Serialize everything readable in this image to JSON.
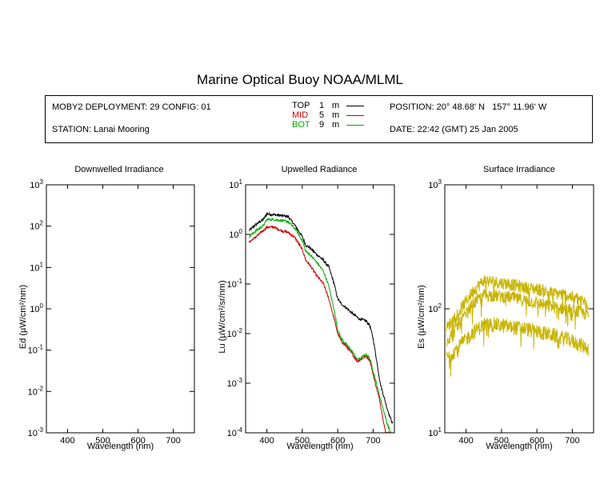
{
  "title": "Marine Optical Buoy NOAA/MLML",
  "info": {
    "deployment": "MOBY2 DEPLOYMENT: 29 CONFIG: 01",
    "station": "STATION: Lanai Mooring",
    "position": "POSITION: 20° 48.68' N   157° 11.96' W",
    "date": "DATE: 22:42 (GMT) 25 Jan 2005",
    "legend": [
      {
        "name": "TOP",
        "depth": "1",
        "unit": "m",
        "color": "#000000"
      },
      {
        "name": "MID",
        "depth": "5",
        "unit": "m",
        "color": "#cc0000"
      },
      {
        "name": "BOT",
        "depth": "9",
        "unit": "m",
        "color": "#00aa00"
      }
    ]
  },
  "chart_data": [
    {
      "type": "line",
      "title": "Downwelled Irradiance",
      "xlabel": "Wavelength (nm)",
      "ylabel": "Ed  (µW/cm²/nm)",
      "xlim": [
        340,
        760
      ],
      "xticks": [
        "400",
        "500",
        "600",
        "700"
      ],
      "yscale": "log",
      "ylim": [
        0.001,
        1000
      ],
      "yticks": [
        "10⁻³",
        "10⁻²",
        "10⁻¹",
        "10⁰",
        "10¹",
        "10²",
        "10³"
      ],
      "series": []
    },
    {
      "type": "line",
      "title": "Upwelled Radiance",
      "xlabel": "Wavelength (nm)",
      "ylabel": "Lu  (µW/cm²/sr/nm)",
      "xlim": [
        340,
        760
      ],
      "xticks": [
        "400",
        "500",
        "600",
        "700"
      ],
      "yscale": "log",
      "ylim": [
        0.0001,
        10
      ],
      "yticks": [
        "10⁻⁴",
        "10⁻³",
        "10⁻²",
        "10⁻¹",
        "10⁰",
        "10¹"
      ],
      "series": [
        {
          "name": "TOP",
          "color": "#000000",
          "noise": 0.06,
          "x": [
            350,
            370,
            390,
            400,
            420,
            440,
            460,
            480,
            500,
            510,
            520,
            540,
            560,
            575,
            590,
            600,
            610,
            620,
            640,
            660,
            680,
            690,
            700,
            720,
            740,
            755
          ],
          "y": [
            1.2,
            1.6,
            2.0,
            2.6,
            2.5,
            2.4,
            2.3,
            1.5,
            0.9,
            0.6,
            0.55,
            0.4,
            0.3,
            0.22,
            0.1,
            0.05,
            0.04,
            0.035,
            0.026,
            0.02,
            0.018,
            0.015,
            0.008,
            0.001,
            0.0003,
            0.00015
          ]
        },
        {
          "name": "MID",
          "color": "#cc0000",
          "noise": 0.06,
          "x": [
            350,
            370,
            390,
            400,
            420,
            440,
            460,
            480,
            500,
            510,
            520,
            540,
            560,
            575,
            590,
            600,
            610,
            620,
            640,
            655,
            665,
            680,
            690,
            700,
            720,
            735,
            745
          ],
          "y": [
            0.7,
            0.9,
            1.2,
            1.4,
            1.4,
            1.2,
            1.1,
            0.85,
            0.5,
            0.3,
            0.25,
            0.15,
            0.1,
            0.05,
            0.02,
            0.01,
            0.007,
            0.006,
            0.004,
            0.0028,
            0.003,
            0.0035,
            0.003,
            0.0015,
            0.0004,
            0.0001,
            0.0001
          ]
        },
        {
          "name": "BOT",
          "color": "#00aa00",
          "noise": 0.06,
          "x": [
            350,
            370,
            390,
            400,
            420,
            440,
            460,
            480,
            500,
            510,
            520,
            540,
            560,
            575,
            590,
            600,
            610,
            620,
            640,
            655,
            665,
            680,
            690,
            700,
            720,
            740,
            750
          ],
          "y": [
            0.9,
            1.2,
            1.5,
            2.0,
            2.0,
            1.9,
            1.8,
            1.3,
            0.75,
            0.45,
            0.4,
            0.28,
            0.18,
            0.09,
            0.03,
            0.012,
            0.008,
            0.0065,
            0.0045,
            0.003,
            0.0032,
            0.0038,
            0.0032,
            0.0018,
            0.0005,
            0.00015,
            0.0001
          ]
        }
      ]
    },
    {
      "type": "line",
      "title": "Surface Irradiance",
      "xlabel": "Wavelength (nm)",
      "ylabel": "Es  (µW/cm²/nm)",
      "xlim": [
        340,
        760
      ],
      "xticks": [
        "400",
        "500",
        "600",
        "700"
      ],
      "yscale": "log",
      "ylim": [
        10,
        1000
      ],
      "yticks": [
        "10¹",
        "10²",
        "10³"
      ],
      "series": [
        {
          "name": "",
          "color": "#c8b400",
          "noise": 0.12,
          "x": [
            345,
            380,
            420,
            450,
            480,
            520,
            560,
            600,
            640,
            680,
            720,
            745
          ],
          "y": [
            70,
            95,
            140,
            170,
            165,
            160,
            150,
            145,
            135,
            130,
            120,
            110
          ]
        },
        {
          "name": "",
          "color": "#c8b400",
          "noise": 0.12,
          "x": [
            345,
            380,
            420,
            450,
            480,
            520,
            560,
            600,
            640,
            680,
            720,
            745
          ],
          "y": [
            55,
            75,
            110,
            130,
            128,
            125,
            118,
            112,
            105,
            100,
            95,
            90
          ]
        },
        {
          "name": "",
          "color": "#c8b400",
          "noise": 0.14,
          "x": [
            345,
            380,
            420,
            450,
            480,
            520,
            560,
            600,
            640,
            680,
            720,
            745
          ],
          "y": [
            40,
            50,
            65,
            75,
            75,
            72,
            70,
            66,
            62,
            58,
            52,
            48
          ]
        }
      ]
    }
  ]
}
